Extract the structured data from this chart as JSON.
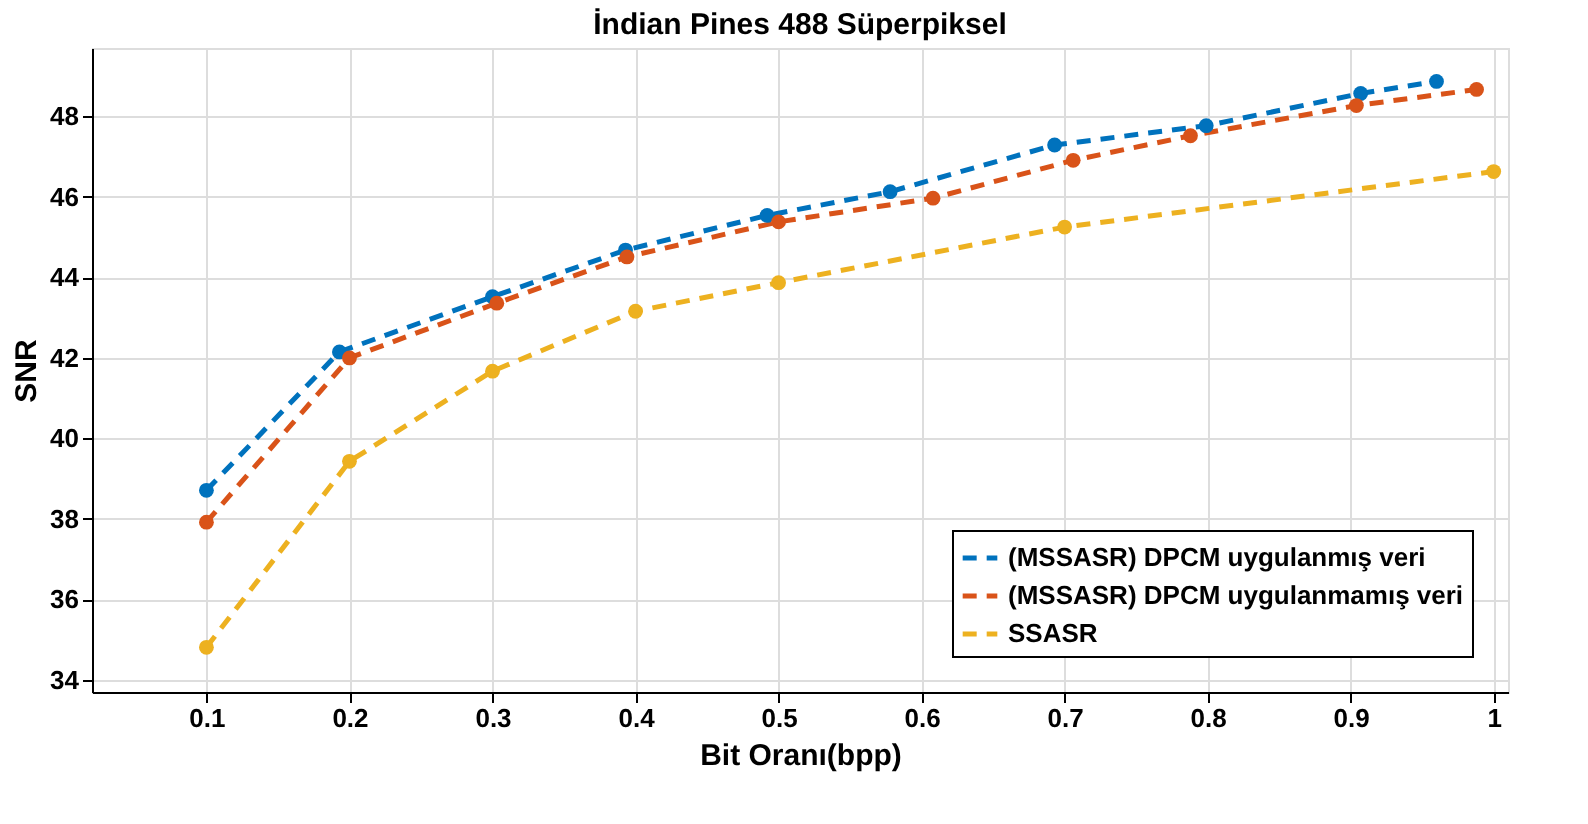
{
  "chart_data": {
    "type": "line",
    "title": "İndian Pines 488 Süperpiksel",
    "xlabel": "Bit Oranı(bpp)",
    "ylabel": "SNR",
    "xlim": [
      0.02,
      1.01
    ],
    "ylim": [
      33.7,
      49.7
    ],
    "xticks": [
      0.1,
      0.2,
      0.3,
      0.4,
      0.5,
      0.6,
      0.7,
      0.8,
      0.9,
      1
    ],
    "yticks": [
      34,
      36,
      38,
      40,
      42,
      44,
      46,
      48
    ],
    "grid": true,
    "legend": "bottom right",
    "marker": "circle",
    "line_style": "dashed",
    "series": [
      {
        "name": "(MSSASR) DPCM uygulanmış veri",
        "color": "#0072bd",
        "x": [
          0.1,
          0.193,
          0.3,
          0.393,
          0.492,
          0.578,
          0.693,
          0.799,
          0.907,
          0.96
        ],
        "values": [
          38.71,
          42.15,
          43.52,
          44.68,
          45.54,
          46.13,
          47.29,
          47.77,
          48.57,
          48.87
        ]
      },
      {
        "name": "(MSSASR) DPCM uygulanmamış veri",
        "color": "#d95319",
        "x": [
          0.1,
          0.2,
          0.303,
          0.394,
          0.5,
          0.608,
          0.706,
          0.788,
          0.904,
          0.988
        ],
        "values": [
          37.92,
          42.0,
          43.36,
          44.51,
          45.38,
          45.97,
          46.91,
          47.52,
          48.27,
          48.67
        ]
      },
      {
        "name": "SSASR",
        "color": "#edb120",
        "x": [
          0.1,
          0.2,
          0.3,
          0.4,
          0.5,
          0.7,
          1.0
        ],
        "values": [
          34.81,
          39.43,
          41.67,
          43.16,
          43.87,
          45.25,
          46.63
        ]
      }
    ]
  }
}
